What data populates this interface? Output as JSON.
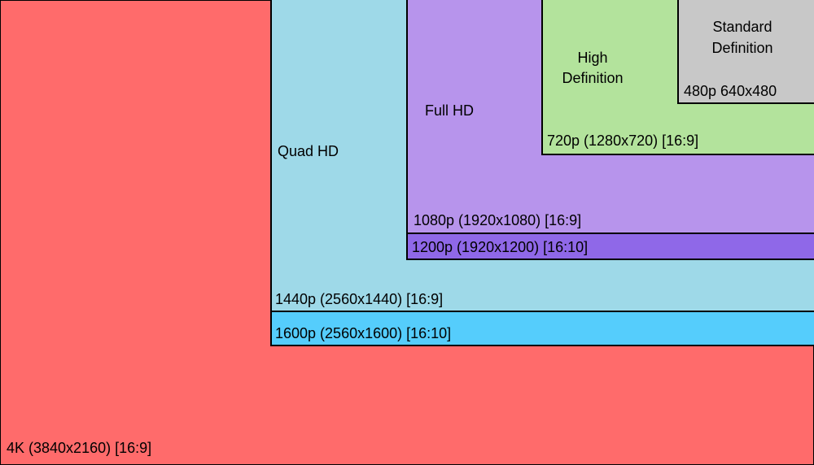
{
  "nodes": [
    {
      "label": "4K (3840x2160) [16:9]"
    },
    {
      "label": "1600p (2560x1600) [16:10]"
    },
    {
      "label": "1440p (2560x1440) [16:9]",
      "title": "Quad HD"
    },
    {
      "label": "1200p (1920x1200) [16:10]"
    },
    {
      "label": "1080p (1920x1080) [16:9]",
      "title": "Full HD"
    },
    {
      "label": "720p (1280x720) [16:9]",
      "title": "High Definition"
    },
    {
      "label": "480p 640x480",
      "title": "Standard Definition"
    }
  ]
}
